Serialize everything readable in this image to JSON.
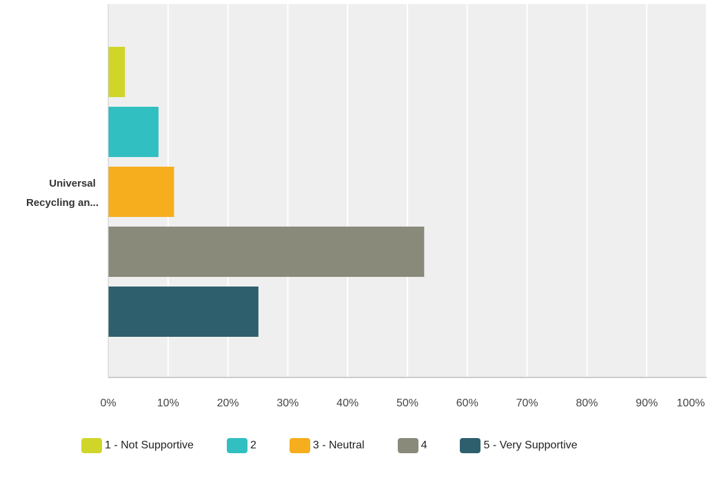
{
  "chart_data": {
    "type": "bar",
    "orientation": "horizontal",
    "categories": [
      "Universal Recycling an..."
    ],
    "series": [
      {
        "name": "1 - Not Supportive",
        "values": [
          2.8
        ],
        "color": "#d0d52a"
      },
      {
        "name": "2",
        "values": [
          8.4
        ],
        "color": "#32bfc1"
      },
      {
        "name": "3 - Neutral",
        "values": [
          11.0
        ],
        "color": "#f6ae1f"
      },
      {
        "name": "4",
        "values": [
          52.8
        ],
        "color": "#8a8a7b"
      },
      {
        "name": "5 - Very Supportive",
        "values": [
          25.1
        ],
        "color": "#2e5f6d"
      }
    ],
    "category_label_lines": [
      "Universal",
      "Recycling an..."
    ],
    "xlim": [
      0,
      100
    ],
    "x_ticks": [
      "0%",
      "10%",
      "20%",
      "30%",
      "40%",
      "50%",
      "60%",
      "70%",
      "80%",
      "90%",
      "100%"
    ],
    "title": "",
    "xlabel": "",
    "ylabel": "",
    "grid": true,
    "legend_position": "bottom"
  },
  "colors": {
    "plot_background": "#efefef",
    "gridline": "#ffffff",
    "axis": "#cccccc"
  }
}
